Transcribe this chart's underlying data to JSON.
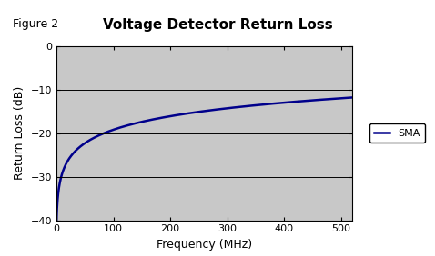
{
  "title": "Voltage Detector Return Loss",
  "figure_label": "Figure 2",
  "xlabel": "Frequency (MHz)",
  "ylabel": "Return Loss (dB)",
  "xlim": [
    0,
    520
  ],
  "ylim": [
    -40,
    0
  ],
  "xticks": [
    0,
    100,
    200,
    300,
    400,
    500
  ],
  "yticks": [
    -40,
    -30,
    -20,
    -10,
    0
  ],
  "background_color": "#c8c8c8",
  "outer_background": "#ffffff",
  "line_color": "#00008B",
  "line_label": "SMA",
  "line_width": 1.8,
  "legend_bg": "#ffffff",
  "grid_color": "#000000",
  "title_fontsize": 11,
  "label_fontsize": 9,
  "tick_fontsize": 8,
  "figure_label_fontsize": 9,
  "curve_A": 4.505,
  "curve_C": -40.0
}
